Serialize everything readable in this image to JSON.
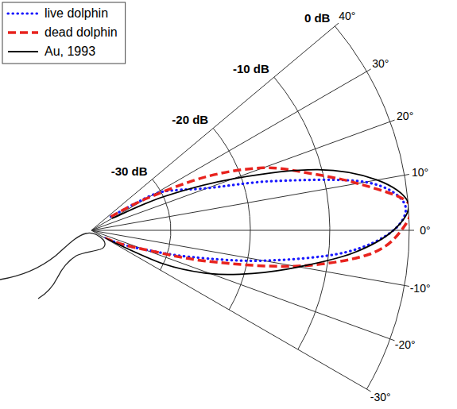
{
  "chart_data": {
    "type": "polar",
    "xlim": [
      -30,
      40
    ],
    "xticks": [
      {
        "value": -30,
        "label": "-30°"
      },
      {
        "value": -20,
        "label": "-20°"
      },
      {
        "value": -10,
        "label": "-10°"
      },
      {
        "value": 0,
        "label": "0°"
      },
      {
        "value": 10,
        "label": "10°"
      },
      {
        "value": 20,
        "label": "20°"
      },
      {
        "value": 30,
        "label": "30°"
      },
      {
        "value": 40,
        "label": "40°"
      }
    ],
    "ylim": [
      -40,
      0
    ],
    "yticks": [
      {
        "value": -30,
        "label": "-30 dB"
      },
      {
        "value": -20,
        "label": "-20 dB"
      },
      {
        "value": -10,
        "label": "-10 dB"
      },
      {
        "value": 0,
        "label": "0 dB"
      }
    ],
    "grid": true,
    "legend": "upper left",
    "series": [
      {
        "name": "live dolphin",
        "color": "#1a1aff",
        "line_style": "dotted",
        "x": [
          -30,
          -25,
          -20,
          -15,
          -10,
          -5,
          0,
          5,
          10,
          15,
          20,
          25,
          30,
          35
        ],
        "values": [
          -38,
          -36,
          -33,
          -27,
          -18,
          -8,
          -2,
          -0.5,
          -5,
          -16,
          -24.5,
          -28,
          -31,
          -37
        ]
      },
      {
        "name": "dead dolphin",
        "color": "#e8231e",
        "line_style": "dashed",
        "x": [
          -30,
          -25,
          -20,
          -15,
          -10,
          -5,
          0,
          5,
          10,
          15,
          20,
          25,
          30,
          35
        ],
        "values": [
          -38,
          -36,
          -33,
          -25,
          -14,
          -5,
          -1,
          0,
          -6,
          -12,
          -17,
          -24,
          -32,
          -37
        ]
      },
      {
        "name": "Au, 1993",
        "color": "#000000",
        "line_style": "solid",
        "x": [
          -30,
          -25,
          -20,
          -15,
          -10,
          -5,
          0,
          5,
          10,
          15,
          20,
          25,
          30
        ],
        "values": [
          -38,
          -30,
          -24,
          -19,
          -13.5,
          -7,
          -2,
          0,
          -3.5,
          -10.5,
          -21,
          -30,
          -37
        ]
      }
    ]
  }
}
